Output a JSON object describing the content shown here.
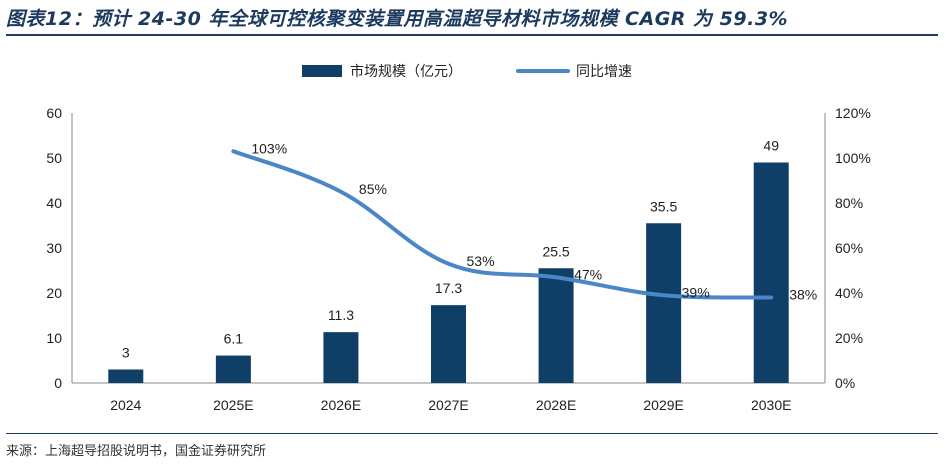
{
  "figure": {
    "title": "图表12：预计 24-30 年全球可控核聚变装置用高温超导材料市场规模 CAGR 为 59.3%",
    "source": "来源：上海超导招股说明书，国金证券研究所"
  },
  "chart_data": {
    "type": "bar+line",
    "categories": [
      "2024",
      "2025E",
      "2026E",
      "2027E",
      "2028E",
      "2029E",
      "2030E"
    ],
    "series": [
      {
        "name": "市场规模（亿元）",
        "type": "bar",
        "axis": "left",
        "values": [
          3,
          6.1,
          11.3,
          17.3,
          25.5,
          35.5,
          49
        ],
        "labels": [
          "3",
          "6.1",
          "11.3",
          "17.3",
          "25.5",
          "35.5",
          "49"
        ]
      },
      {
        "name": "同比增速",
        "type": "line",
        "axis": "right",
        "values": [
          null,
          103,
          85,
          53,
          47,
          39,
          38
        ],
        "labels": [
          "",
          "103%",
          "85%",
          "53%",
          "47%",
          "39%",
          "38%"
        ]
      }
    ],
    "y_left": {
      "lim": [
        0,
        60
      ],
      "ticks": [
        "0",
        "10",
        "20",
        "30",
        "40",
        "50",
        "60"
      ]
    },
    "y_right": {
      "lim": [
        0,
        120
      ],
      "ticks": [
        "0%",
        "20%",
        "40%",
        "60%",
        "80%",
        "100%",
        "120%"
      ]
    },
    "legend_position": "top-center",
    "grid": false,
    "colors": {
      "bar": "#0f3e66",
      "line": "#4a86c8",
      "title": "#1c3a5e"
    }
  }
}
